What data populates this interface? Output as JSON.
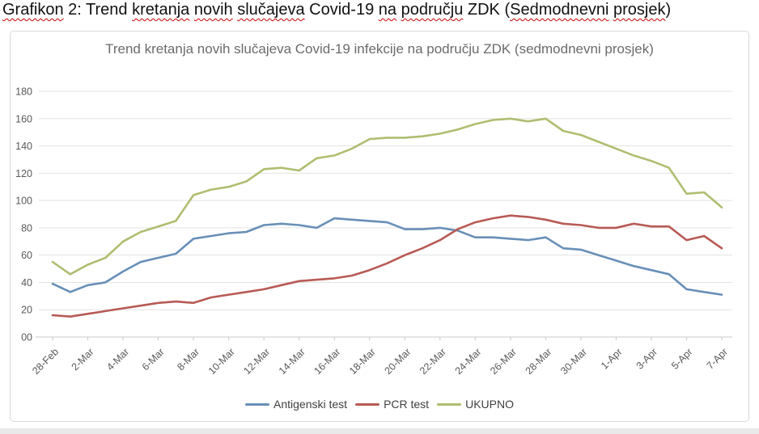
{
  "page": {
    "heading": {
      "words": [
        {
          "text": "Grafikon",
          "misspelled": true
        },
        {
          "text": "2:",
          "misspelled": false
        },
        {
          "text": "Trend",
          "misspelled": false
        },
        {
          "text": "kretanja",
          "misspelled": true
        },
        {
          "text": "novih",
          "misspelled": true
        },
        {
          "text": "slučajeva",
          "misspelled": true
        },
        {
          "text": "Covid-19",
          "misspelled": false
        },
        {
          "text": "na",
          "misspelled": true
        },
        {
          "text": "području",
          "misspelled": true
        },
        {
          "text": "ZDK",
          "misspelled": false
        },
        {
          "text": "Sedmodnevni",
          "misspelled": true,
          "prefix": "("
        },
        {
          "text": "prosjek",
          "misspelled": true,
          "suffix": ")"
        }
      ],
      "spellcheck_color": "#cc0000"
    }
  },
  "chart_data": {
    "type": "line",
    "title": "Trend kretanja novih slučajeva Covid-19 infekcije na području ZDK (sedmodnevni prosjek)",
    "title_color": "#6b6b6b",
    "categories": [
      "28-Feb",
      "1-Mar",
      "2-Mar",
      "3-Mar",
      "4-Mar",
      "5-Mar",
      "6-Mar",
      "7-Mar",
      "8-Mar",
      "9-Mar",
      "10-Mar",
      "11-Mar",
      "12-Mar",
      "13-Mar",
      "14-Mar",
      "15-Mar",
      "16-Mar",
      "17-Mar",
      "18-Mar",
      "19-Mar",
      "20-Mar",
      "21-Mar",
      "22-Mar",
      "23-Mar",
      "24-Mar",
      "25-Mar",
      "26-Mar",
      "27-Mar",
      "28-Mar",
      "29-Mar",
      "30-Mar",
      "31-Mar",
      "1-Apr",
      "2-Apr",
      "3-Apr",
      "4-Apr",
      "5-Apr",
      "6-Apr",
      "7-Apr"
    ],
    "x_tick_labels": [
      "28-Feb",
      "2-Mar",
      "4-Mar",
      "6-Mar",
      "8-Mar",
      "10-Mar",
      "12-Mar",
      "14-Mar",
      "16-Mar",
      "18-Mar",
      "20-Mar",
      "22-Mar",
      "24-Mar",
      "26-Mar",
      "28-Mar",
      "30-Mar",
      "1-Apr",
      "3-Apr",
      "5-Apr",
      "7-Apr"
    ],
    "y_tick_labels": [
      "180",
      "160",
      "140",
      "120",
      "100",
      "80",
      "60",
      "40",
      "20",
      "00"
    ],
    "ylim": [
      0,
      180
    ],
    "y_step": 20,
    "grid": true,
    "grid_color": "#e3e3e3",
    "axis_line_color": "#c9c9c9",
    "axis_text_color": "#595959",
    "legend_position": "bottom",
    "series": [
      {
        "name": "Antigenski test",
        "color": "#688fb8",
        "values": [
          39,
          33,
          38,
          40,
          48,
          55,
          58,
          61,
          72,
          74,
          76,
          77,
          82,
          83,
          82,
          80,
          87,
          86,
          85,
          84,
          79,
          79,
          80,
          78,
          73,
          73,
          72,
          71,
          73,
          65,
          64,
          60,
          56,
          52,
          49,
          46,
          35,
          33,
          31
        ]
      },
      {
        "name": "PCR test",
        "color": "#b85a55",
        "values": [
          16,
          15,
          17,
          19,
          21,
          23,
          25,
          26,
          25,
          29,
          31,
          33,
          35,
          38,
          41,
          42,
          43,
          45,
          49,
          54,
          60,
          65,
          71,
          79,
          84,
          87,
          89,
          88,
          86,
          83,
          82,
          80,
          80,
          83,
          81,
          81,
          71,
          74,
          65
        ]
      },
      {
        "name": "UKUPNO",
        "color": "#aebe70",
        "values": [
          55,
          46,
          53,
          58,
          70,
          77,
          81,
          85,
          104,
          108,
          110,
          114,
          123,
          124,
          122,
          131,
          133,
          138,
          145,
          146,
          146,
          147,
          149,
          152,
          156,
          159,
          160,
          158,
          160,
          151,
          148,
          143,
          138,
          133,
          129,
          124,
          105,
          106,
          95
        ]
      }
    ]
  }
}
